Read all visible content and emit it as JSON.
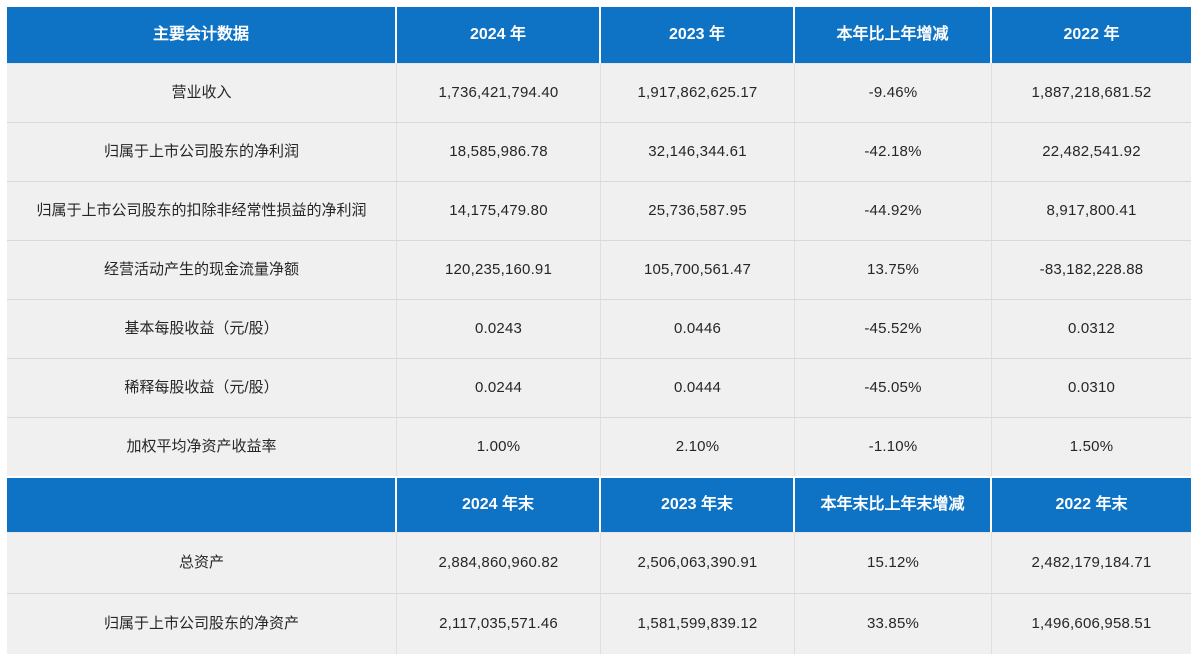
{
  "colors": {
    "header_bg": "#0E73C4",
    "row_bg": "#F0F0F0",
    "text": "#262626",
    "header_text": "#FFFFFF"
  },
  "table": {
    "section1": {
      "header": {
        "col0": "主要会计数据",
        "col1": "2024 年",
        "col2": "2023 年",
        "col3": "本年比上年增减",
        "col4": "2022 年"
      },
      "rows": [
        {
          "label": "营业收入",
          "y2024": "1,736,421,794.40",
          "y2023": "1,917,862,625.17",
          "change": "-9.46%",
          "y2022": "1,887,218,681.52"
        },
        {
          "label": "归属于上市公司股东的净利润",
          "y2024": "18,585,986.78",
          "y2023": "32,146,344.61",
          "change": "-42.18%",
          "y2022": "22,482,541.92"
        },
        {
          "label": "归属于上市公司股东的扣除非经常性损益的净利润",
          "y2024": "14,175,479.80",
          "y2023": "25,736,587.95",
          "change": "-44.92%",
          "y2022": "8,917,800.41"
        },
        {
          "label": "经营活动产生的现金流量净额",
          "y2024": "120,235,160.91",
          "y2023": "105,700,561.47",
          "change": "13.75%",
          "y2022": "-83,182,228.88"
        },
        {
          "label": "基本每股收益（元/股）",
          "y2024": "0.0243",
          "y2023": "0.0446",
          "change": "-45.52%",
          "y2022": "0.0312"
        },
        {
          "label": "稀释每股收益（元/股）",
          "y2024": "0.0244",
          "y2023": "0.0444",
          "change": "-45.05%",
          "y2022": "0.0310"
        },
        {
          "label": "加权平均净资产收益率",
          "y2024": "1.00%",
          "y2023": "2.10%",
          "change": "-1.10%",
          "y2022": "1.50%"
        }
      ]
    },
    "section2": {
      "header": {
        "col0": "",
        "col1": "2024 年末",
        "col2": "2023 年末",
        "col3": "本年末比上年末增减",
        "col4": "2022 年末"
      },
      "rows": [
        {
          "label": "总资产",
          "y2024": "2,884,860,960.82",
          "y2023": "2,506,063,390.91",
          "change": "15.12%",
          "y2022": "2,482,179,184.71"
        },
        {
          "label": "归属于上市公司股东的净资产",
          "y2024": "2,117,035,571.46",
          "y2023": "1,581,599,839.12",
          "change": "33.85%",
          "y2022": "1,496,606,958.51"
        }
      ]
    }
  }
}
